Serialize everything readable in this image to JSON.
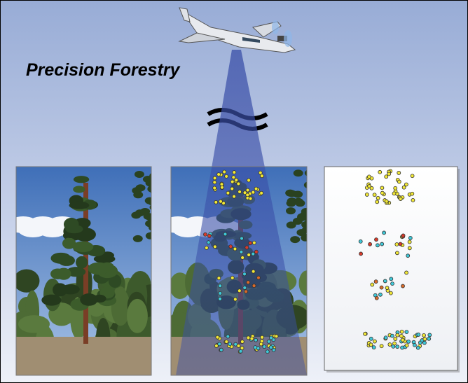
{
  "title": "Precision Forestry"
}
